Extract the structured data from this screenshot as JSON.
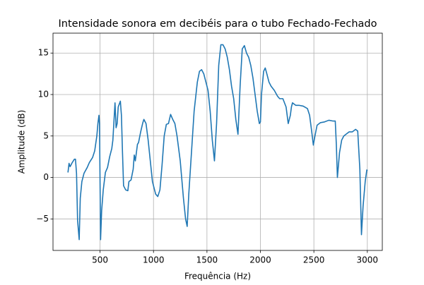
{
  "chart_data": {
    "type": "line",
    "title": "Intensidade sonora em decibéis para o tubo Fechado-Fechado",
    "x_label": "Frequência (Hz)",
    "y_label": "Amplitude (dB)",
    "x": [
      200,
      210,
      220,
      240,
      260,
      270,
      280,
      290,
      305,
      315,
      330,
      350,
      380,
      400,
      430,
      450,
      470,
      480,
      490,
      495,
      505,
      515,
      530,
      550,
      570,
      590,
      610,
      620,
      640,
      650,
      660,
      670,
      690,
      700,
      710,
      720,
      740,
      760,
      770,
      790,
      810,
      820,
      830,
      850,
      860,
      880,
      900,
      910,
      930,
      950,
      970,
      990,
      1020,
      1040,
      1060,
      1080,
      1100,
      1120,
      1140,
      1160,
      1180,
      1200,
      1220,
      1250,
      1280,
      1300,
      1315,
      1330,
      1360,
      1380,
      1410,
      1430,
      1450,
      1470,
      1490,
      1510,
      1530,
      1550,
      1570,
      1590,
      1610,
      1630,
      1650,
      1670,
      1690,
      1710,
      1730,
      1750,
      1770,
      1790,
      1810,
      1830,
      1850,
      1870,
      1890,
      1910,
      1930,
      1950,
      1970,
      1990,
      2000,
      2010,
      2030,
      2045,
      2060,
      2080,
      2100,
      2130,
      2160,
      2180,
      2210,
      2240,
      2260,
      2280,
      2290,
      2300,
      2330,
      2360,
      2400,
      2440,
      2460,
      2480,
      2495,
      2510,
      2530,
      2560,
      2600,
      2640,
      2680,
      2700,
      2710,
      2720,
      2740,
      2760,
      2780,
      2800,
      2830,
      2860,
      2890,
      2910,
      2930,
      2945,
      2960,
      2980,
      2995,
      3000
    ],
    "series": [
      {
        "color": "#1f77b4",
        "values": [
          0.6,
          1.7,
          1.3,
          1.8,
          2.2,
          2.2,
          0.5,
          -5.2,
          -7.5,
          -2.5,
          -0.5,
          0.5,
          1.2,
          1.8,
          2.4,
          3.2,
          5.0,
          6.5,
          7.5,
          6.5,
          -7.5,
          -4.0,
          -1.5,
          0.6,
          1.2,
          2.5,
          3.5,
          4.5,
          9.0,
          6.0,
          6.5,
          8.5,
          9.2,
          7.5,
          3.0,
          -1.0,
          -1.5,
          -1.6,
          -0.5,
          -0.3,
          1.0,
          2.7,
          2.0,
          4.0,
          4.2,
          5.5,
          6.6,
          7.0,
          6.5,
          4.5,
          2.0,
          -0.5,
          -2.0,
          -2.3,
          -1.5,
          1.5,
          5.0,
          6.4,
          6.5,
          7.6,
          7.0,
          6.5,
          5.0,
          2.0,
          -2.5,
          -5.0,
          -5.9,
          -2.0,
          4.0,
          8.0,
          11.5,
          12.8,
          13.0,
          12.5,
          11.5,
          10.5,
          8.0,
          4.5,
          2.0,
          6.5,
          13.5,
          16.0,
          16.0,
          15.5,
          14.5,
          13.0,
          11.0,
          9.5,
          7.0,
          5.2,
          11.0,
          15.5,
          15.9,
          15.0,
          14.5,
          13.5,
          12.0,
          10.0,
          8.0,
          6.5,
          6.7,
          10.0,
          12.8,
          13.2,
          12.5,
          11.5,
          11.0,
          10.5,
          9.8,
          9.5,
          9.5,
          8.5,
          6.5,
          7.5,
          8.5,
          9.0,
          8.7,
          8.7,
          8.6,
          8.3,
          7.5,
          5.5,
          3.9,
          5.0,
          6.3,
          6.6,
          6.7,
          6.9,
          6.8,
          6.8,
          4.0,
          0.0,
          3.0,
          4.5,
          5.0,
          5.2,
          5.5,
          5.5,
          5.8,
          5.6,
          1.0,
          -6.9,
          -3.5,
          -0.5,
          0.9,
          0.8
        ]
      }
    ],
    "xlim": [
      60,
      3140
    ],
    "ylim": [
      -8.8,
      17.4
    ],
    "xticks": [
      500,
      1000,
      1500,
      2000,
      2500,
      3000
    ],
    "yticks": [
      {
        "value": -5,
        "label": "−5"
      },
      0,
      5,
      10,
      15
    ],
    "grid": true
  }
}
